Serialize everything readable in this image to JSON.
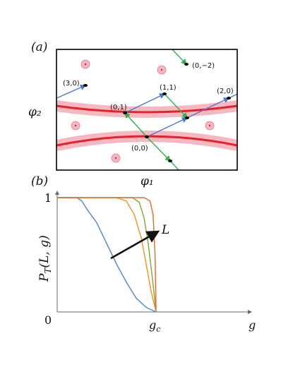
{
  "panel_a": {
    "label": "(a)",
    "xlabel": "φ₁",
    "ylabel": "φ₂",
    "points": [
      {
        "label": "(3,0)"
      },
      {
        "label": "(0,1)"
      },
      {
        "label": "(1,1)"
      },
      {
        "label": "(2,0)"
      },
      {
        "label": "(0,0)"
      },
      {
        "label": "(0,−2)"
      }
    ],
    "colors": {
      "band": "#e8202a",
      "halo": "#f4a6b0",
      "blue_arrow": "#4a78c8",
      "green_arrow": "#2db34a"
    }
  },
  "panel_b": {
    "label": "(b)",
    "arrow_label": "L",
    "ylabel": "P_T(L, g)",
    "chart_data": {
      "type": "line",
      "ylabel": "P_T(L, g)",
      "xlabel": "g",
      "x_ticks": [
        "0",
        "g_c"
      ],
      "y_ticks": [
        "1"
      ],
      "ylim": [
        0,
        1
      ],
      "xlim": [
        0,
        2
      ],
      "annotation": "L",
      "grid": false,
      "series": [
        {
          "color": "#5b8ac4",
          "points": [
            [
              0,
              1
            ],
            [
              0.2,
              1
            ],
            [
              0.25,
              0.97
            ],
            [
              0.3,
              0.9
            ],
            [
              0.4,
              0.78
            ],
            [
              0.5,
              0.6
            ],
            [
              0.6,
              0.42
            ],
            [
              0.7,
              0.26
            ],
            [
              0.8,
              0.12
            ],
            [
              0.9,
              0.04
            ],
            [
              1.0,
              0
            ]
          ]
        },
        {
          "color": "#e89a2a",
          "points": [
            [
              0,
              1
            ],
            [
              0.6,
              1
            ],
            [
              0.7,
              0.97
            ],
            [
              0.78,
              0.85
            ],
            [
              0.85,
              0.65
            ],
            [
              0.9,
              0.42
            ],
            [
              0.95,
              0.18
            ],
            [
              1.0,
              0
            ]
          ]
        },
        {
          "color": "#8aa840",
          "points": [
            [
              0,
              1
            ],
            [
              0.76,
              1
            ],
            [
              0.83,
              0.96
            ],
            [
              0.88,
              0.82
            ],
            [
              0.92,
              0.6
            ],
            [
              0.96,
              0.32
            ],
            [
              1.0,
              0
            ]
          ]
        },
        {
          "color": "#e0703a",
          "points": [
            [
              0,
              1
            ],
            [
              0.88,
              1
            ],
            [
              0.94,
              0.97
            ],
            [
              0.97,
              0.85
            ],
            [
              0.99,
              0.5
            ],
            [
              1.0,
              0
            ]
          ]
        }
      ]
    }
  }
}
